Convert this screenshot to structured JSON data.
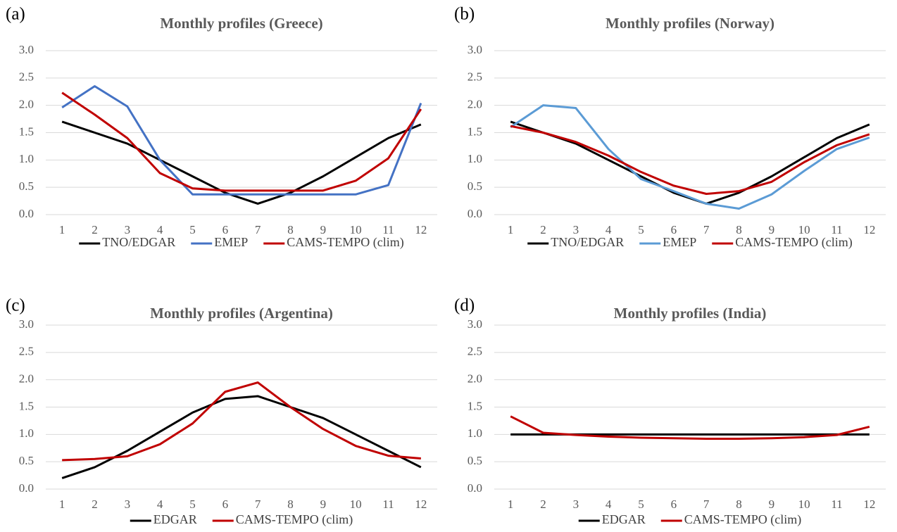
{
  "chart_data": [
    {
      "type": "line",
      "label": "(a)",
      "title": "Monthly profiles (Greece)",
      "categories": [
        1,
        2,
        3,
        4,
        5,
        6,
        7,
        8,
        9,
        10,
        11,
        12
      ],
      "series": [
        {
          "name": "TNO/EDGAR",
          "color": "#000000",
          "values": [
            1.7,
            1.5,
            1.3,
            1.0,
            0.7,
            0.4,
            0.2,
            0.4,
            0.7,
            1.05,
            1.4,
            1.65
          ]
        },
        {
          "name": "EMEP",
          "color": "#4472c4",
          "values": [
            1.96,
            2.35,
            1.98,
            1.0,
            0.37,
            0.37,
            0.37,
            0.37,
            0.37,
            0.37,
            0.54,
            2.04
          ]
        },
        {
          "name": "CAMS-TEMPO (clim)",
          "color": "#c00000",
          "values": [
            2.23,
            1.83,
            1.4,
            0.76,
            0.48,
            0.44,
            0.44,
            0.44,
            0.44,
            0.62,
            1.03,
            1.93
          ]
        }
      ],
      "ylim": [
        0,
        3
      ],
      "yticks": [
        {
          "value": 0,
          "label": "0.0"
        },
        0.5,
        {
          "value": 1,
          "label": "1.0"
        },
        1.5,
        {
          "value": 2,
          "label": "2.0"
        },
        2.5,
        {
          "value": 3,
          "label": "3.0"
        }
      ],
      "grid": true,
      "legend": "bottom"
    },
    {
      "type": "line",
      "label": "(b)",
      "title": "Monthly profiles (Norway)",
      "categories": [
        1,
        2,
        3,
        4,
        5,
        6,
        7,
        8,
        9,
        10,
        11,
        12
      ],
      "series": [
        {
          "name": "TNO/EDGAR",
          "color": "#000000",
          "values": [
            1.7,
            1.5,
            1.3,
            1.0,
            0.7,
            0.4,
            0.2,
            0.4,
            0.7,
            1.05,
            1.4,
            1.65
          ]
        },
        {
          "name": "EMEP",
          "color": "#5b9bd5",
          "values": [
            1.6,
            2.0,
            1.95,
            1.2,
            0.65,
            0.43,
            0.2,
            0.11,
            0.37,
            0.8,
            1.2,
            1.41
          ]
        },
        {
          "name": "CAMS-TEMPO (clim)",
          "color": "#c00000",
          "values": [
            1.62,
            1.5,
            1.33,
            1.08,
            0.78,
            0.53,
            0.38,
            0.43,
            0.6,
            0.96,
            1.27,
            1.47
          ]
        }
      ],
      "ylim": [
        0,
        3
      ],
      "yticks": [
        {
          "value": 0,
          "label": "0.0"
        },
        0.5,
        {
          "value": 1,
          "label": "1.0"
        },
        1.5,
        {
          "value": 2,
          "label": "2.0"
        },
        2.5,
        {
          "value": 3,
          "label": "3.0"
        }
      ],
      "grid": true,
      "legend": "bottom"
    },
    {
      "type": "line",
      "label": "(c)",
      "title": "Monthly profiles (Argentina)",
      "categories": [
        1,
        2,
        3,
        4,
        5,
        6,
        7,
        8,
        9,
        10,
        11,
        12
      ],
      "series": [
        {
          "name": "EDGAR",
          "color": "#000000",
          "values": [
            0.2,
            0.4,
            0.7,
            1.05,
            1.4,
            1.65,
            1.7,
            1.5,
            1.3,
            1.0,
            0.7,
            0.4
          ]
        },
        {
          "name": "CAMS-TEMPO (clim)",
          "color": "#c00000",
          "values": [
            0.53,
            0.55,
            0.6,
            0.82,
            1.2,
            1.78,
            1.95,
            1.5,
            1.1,
            0.79,
            0.61,
            0.56
          ]
        }
      ],
      "ylim": [
        0,
        3
      ],
      "yticks": [
        {
          "value": 0,
          "label": "0.0"
        },
        0.5,
        {
          "value": 1,
          "label": "1.0"
        },
        1.5,
        {
          "value": 2,
          "label": "2.0"
        },
        2.5,
        {
          "value": 3,
          "label": "3.0"
        }
      ],
      "grid": true,
      "legend": "bottom"
    },
    {
      "type": "line",
      "label": "(d)",
      "title": "Monthly profiles (India)",
      "categories": [
        1,
        2,
        3,
        4,
        5,
        6,
        7,
        8,
        9,
        10,
        11,
        12
      ],
      "series": [
        {
          "name": "EDGAR",
          "color": "#000000",
          "values": [
            1.0,
            1.0,
            1.0,
            1.0,
            1.0,
            1.0,
            1.0,
            1.0,
            1.0,
            1.0,
            1.0,
            1.0
          ]
        },
        {
          "name": "CAMS-TEMPO (clim)",
          "color": "#c00000",
          "values": [
            1.33,
            1.03,
            0.99,
            0.96,
            0.94,
            0.93,
            0.92,
            0.92,
            0.93,
            0.95,
            0.99,
            1.14
          ]
        }
      ],
      "ylim": [
        0,
        3
      ],
      "yticks": [
        {
          "value": 0,
          "label": "0.0"
        },
        0.5,
        {
          "value": 1,
          "label": "1.0"
        },
        1.5,
        {
          "value": 2,
          "label": "2.0"
        },
        2.5,
        {
          "value": 3,
          "label": "3.0"
        }
      ],
      "grid": true,
      "legend": "bottom"
    }
  ]
}
